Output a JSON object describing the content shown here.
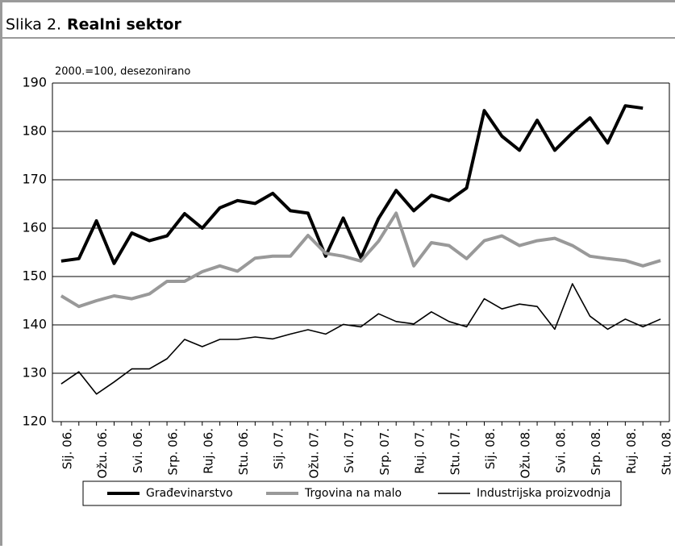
{
  "chart_data": {
    "type": "line",
    "figure_label": "Slika 2.",
    "title": "Realni sektor",
    "subtitle": "2000.=100, desezonirano",
    "categories": [
      "Sij. 06.",
      null,
      "Ožu. 06.",
      null,
      "Svi. 06.",
      null,
      "Srp. 06.",
      null,
      "Ruj. 06.",
      null,
      "Stu. 06.",
      null,
      "Sij. 07.",
      null,
      "Ožu. 07.",
      null,
      "Svi. 07.",
      null,
      "Srp. 07.",
      null,
      "Ruj. 07.",
      null,
      "Stu. 07.",
      null,
      "Sij. 08.",
      null,
      "Ožu. 08.",
      null,
      "Svi. 08.",
      null,
      "Srp. 08.",
      null,
      "Ruj. 08.",
      null,
      "Stu. 08."
    ],
    "series": [
      {
        "name": "Građevinarstvo",
        "color": "#000000",
        "width": 4,
        "values": [
          153.2,
          153.7,
          161.5,
          152.7,
          159,
          157.4,
          158.4,
          163,
          160,
          164.2,
          165.7,
          165.1,
          167.2,
          163.6,
          163.1,
          154.2,
          162.1,
          153.9,
          162,
          167.8,
          163.6,
          166.8,
          165.7,
          168.3,
          184.3,
          179,
          176.1,
          182.3,
          176.1,
          179.7,
          182.8,
          177.6,
          185.3,
          184.8,
          null
        ]
      },
      {
        "name": "Trgovina na malo",
        "color": "#999999",
        "width": 4,
        "values": [
          146,
          143.8,
          145,
          146,
          145.4,
          146.4,
          149,
          149,
          151,
          152.2,
          151.1,
          153.8,
          154.2,
          154.2,
          158.5,
          154.8,
          154.2,
          153.2,
          157.3,
          163.1,
          152.2,
          157,
          156.4,
          153.7,
          157.4,
          158.4,
          156.4,
          157.4,
          157.9,
          156.4,
          154.2,
          153.7,
          153.3,
          152.2,
          153.3
        ]
      },
      {
        "name": "Industrijska proizvodnja",
        "color": "#000000",
        "width": 1.6,
        "values": [
          127.8,
          130.3,
          125.7,
          128.2,
          130.9,
          130.9,
          133,
          137,
          135.5,
          137,
          137,
          137.5,
          137.1,
          138.1,
          139,
          138.1,
          140.1,
          139.6,
          142.3,
          140.7,
          140.2,
          142.7,
          140.7,
          139.6,
          145.4,
          143.3,
          144.3,
          143.8,
          139.1,
          148.5,
          141.8,
          139.1,
          141.2,
          139.6,
          141.2
        ]
      }
    ],
    "ylim": [
      120,
      190
    ],
    "yticks": [
      120,
      130,
      140,
      150,
      160,
      170,
      180,
      190
    ],
    "grid": true
  }
}
